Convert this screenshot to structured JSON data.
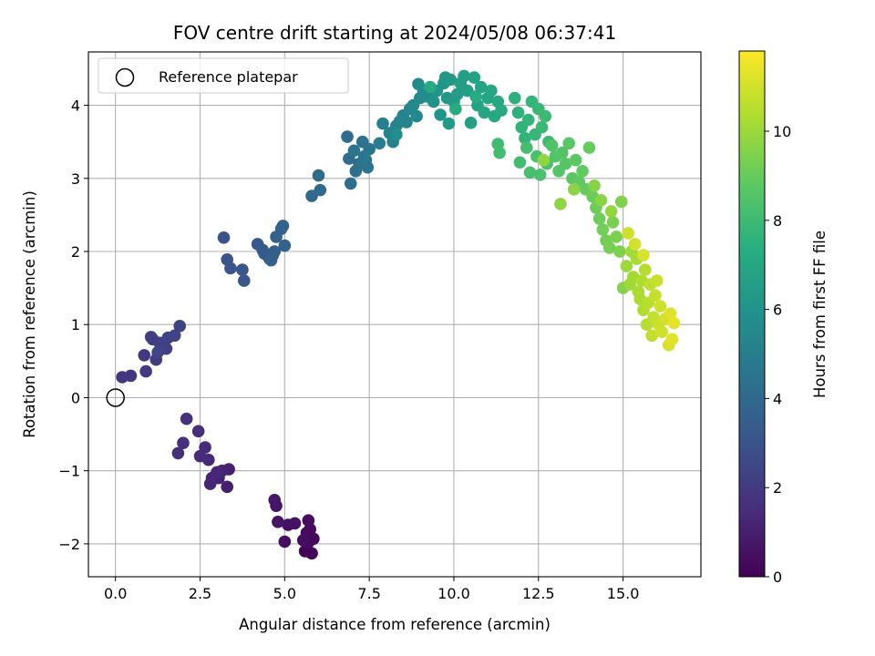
{
  "chart_data": {
    "type": "scatter",
    "title": "FOV centre drift starting at 2024/05/08 06:37:41",
    "xlabel": "Angular distance from reference (arcmin)",
    "ylabel": "Rotation from reference (arcmin)",
    "xlim": [
      -0.8,
      17.3
    ],
    "ylim": [
      -2.45,
      4.73
    ],
    "xticks": [
      0,
      2.5,
      5,
      7.5,
      10,
      12.5,
      15
    ],
    "xtick_labels": [
      "0.0",
      "2.5",
      "5.0",
      "7.5",
      "10.0",
      "12.5",
      "15.0"
    ],
    "yticks": [
      -2,
      -1,
      0,
      1,
      2,
      3,
      4
    ],
    "ytick_labels": [
      "−2",
      "−1",
      "0",
      "1",
      "2",
      "3",
      "4"
    ],
    "grid": true,
    "legend": {
      "placement": "top-left",
      "entries": [
        "Reference platepar"
      ]
    },
    "reference_point": {
      "x": 0,
      "y": 0,
      "label": "Reference platepar"
    },
    "colorbar": {
      "label": "Hours from first FF file",
      "range": [
        0,
        11.8
      ],
      "ticks": [
        0,
        2,
        4,
        6,
        8,
        10
      ],
      "tick_labels": [
        "0",
        "2",
        "4",
        "6",
        "8",
        "10"
      ],
      "colormap": "viridis"
    },
    "points": [
      {
        "x": 5.8,
        "y": -2.13,
        "h": 0.1
      },
      {
        "x": 5.6,
        "y": -2.1,
        "h": 0.15
      },
      {
        "x": 5.85,
        "y": -1.93,
        "h": 0.2
      },
      {
        "x": 5.7,
        "y": -1.98,
        "h": 0.25
      },
      {
        "x": 5.65,
        "y": -1.85,
        "h": 0.3
      },
      {
        "x": 5.75,
        "y": -1.8,
        "h": 0.35
      },
      {
        "x": 5.7,
        "y": -1.68,
        "h": 0.4
      },
      {
        "x": 5.55,
        "y": -1.95,
        "h": 0.45
      },
      {
        "x": 5.0,
        "y": -1.97,
        "h": 0.5
      },
      {
        "x": 5.1,
        "y": -1.74,
        "h": 0.55
      },
      {
        "x": 5.3,
        "y": -1.72,
        "h": 0.6
      },
      {
        "x": 4.8,
        "y": -1.7,
        "h": 0.65
      },
      {
        "x": 4.75,
        "y": -1.48,
        "h": 0.7
      },
      {
        "x": 4.7,
        "y": -1.4,
        "h": 0.75
      },
      {
        "x": 3.3,
        "y": -1.22,
        "h": 1.0
      },
      {
        "x": 3.35,
        "y": -0.98,
        "h": 1.05
      },
      {
        "x": 3.15,
        "y": -1.0,
        "h": 1.1
      },
      {
        "x": 3.05,
        "y": -1.1,
        "h": 1.15
      },
      {
        "x": 2.85,
        "y": -1.1,
        "h": 1.2
      },
      {
        "x": 2.8,
        "y": -1.18,
        "h": 1.25
      },
      {
        "x": 3.0,
        "y": -1.02,
        "h": 1.3
      },
      {
        "x": 2.75,
        "y": -0.85,
        "h": 1.35
      },
      {
        "x": 2.65,
        "y": -0.68,
        "h": 1.4
      },
      {
        "x": 2.5,
        "y": -0.8,
        "h": 1.45
      },
      {
        "x": 2.45,
        "y": -0.46,
        "h": 1.5
      },
      {
        "x": 2.0,
        "y": -0.62,
        "h": 1.55
      },
      {
        "x": 1.85,
        "y": -0.76,
        "h": 1.6
      },
      {
        "x": 2.1,
        "y": -0.29,
        "h": 1.65
      },
      {
        "x": 0.2,
        "y": 0.28,
        "h": 1.8
      },
      {
        "x": 0.45,
        "y": 0.3,
        "h": 1.85
      },
      {
        "x": 0.9,
        "y": 0.36,
        "h": 1.9
      },
      {
        "x": 0.85,
        "y": 0.58,
        "h": 1.95
      },
      {
        "x": 1.2,
        "y": 0.52,
        "h": 2.0
      },
      {
        "x": 1.1,
        "y": 0.8,
        "h": 2.05
      },
      {
        "x": 1.05,
        "y": 0.83,
        "h": 2.1
      },
      {
        "x": 1.3,
        "y": 0.75,
        "h": 2.15
      },
      {
        "x": 1.5,
        "y": 0.67,
        "h": 2.2
      },
      {
        "x": 1.4,
        "y": 0.72,
        "h": 2.25
      },
      {
        "x": 1.55,
        "y": 0.82,
        "h": 2.3
      },
      {
        "x": 1.75,
        "y": 0.85,
        "h": 2.35
      },
      {
        "x": 1.9,
        "y": 0.98,
        "h": 2.4
      },
      {
        "x": 1.25,
        "y": 0.62,
        "h": 2.45
      },
      {
        "x": 3.2,
        "y": 2.19,
        "h": 3.0
      },
      {
        "x": 3.3,
        "y": 1.89,
        "h": 3.05
      },
      {
        "x": 3.4,
        "y": 1.77,
        "h": 3.1
      },
      {
        "x": 3.75,
        "y": 1.75,
        "h": 3.15
      },
      {
        "x": 3.8,
        "y": 1.6,
        "h": 3.2
      },
      {
        "x": 4.2,
        "y": 2.1,
        "h": 3.25
      },
      {
        "x": 4.35,
        "y": 2.02,
        "h": 3.3
      },
      {
        "x": 4.4,
        "y": 1.97,
        "h": 3.35
      },
      {
        "x": 4.55,
        "y": 1.9,
        "h": 3.4
      },
      {
        "x": 4.65,
        "y": 1.95,
        "h": 3.45
      },
      {
        "x": 4.7,
        "y": 2.0,
        "h": 3.5
      },
      {
        "x": 4.6,
        "y": 1.88,
        "h": 3.55
      },
      {
        "x": 4.75,
        "y": 2.2,
        "h": 3.6
      },
      {
        "x": 4.9,
        "y": 2.31,
        "h": 3.65
      },
      {
        "x": 5.0,
        "y": 2.08,
        "h": 3.7
      },
      {
        "x": 4.95,
        "y": 2.35,
        "h": 3.75
      },
      {
        "x": 5.8,
        "y": 2.76,
        "h": 4.0
      },
      {
        "x": 6.05,
        "y": 2.84,
        "h": 4.05
      },
      {
        "x": 6.0,
        "y": 3.04,
        "h": 4.1
      },
      {
        "x": 6.85,
        "y": 3.57,
        "h": 4.15
      },
      {
        "x": 6.9,
        "y": 3.27,
        "h": 4.2
      },
      {
        "x": 6.95,
        "y": 2.93,
        "h": 4.25
      },
      {
        "x": 7.1,
        "y": 3.1,
        "h": 4.3
      },
      {
        "x": 7.2,
        "y": 3.2,
        "h": 4.35
      },
      {
        "x": 7.3,
        "y": 3.5,
        "h": 4.4
      },
      {
        "x": 7.4,
        "y": 3.25,
        "h": 4.45
      },
      {
        "x": 7.5,
        "y": 3.4,
        "h": 4.5
      },
      {
        "x": 7.45,
        "y": 3.15,
        "h": 4.55
      },
      {
        "x": 7.05,
        "y": 3.38,
        "h": 4.6
      },
      {
        "x": 7.35,
        "y": 3.3,
        "h": 4.65
      },
      {
        "x": 7.8,
        "y": 3.48,
        "h": 5.0
      },
      {
        "x": 7.9,
        "y": 3.75,
        "h": 5.05
      },
      {
        "x": 8.1,
        "y": 3.62,
        "h": 5.1
      },
      {
        "x": 8.2,
        "y": 3.5,
        "h": 5.15
      },
      {
        "x": 8.3,
        "y": 3.72,
        "h": 5.2
      },
      {
        "x": 8.4,
        "y": 3.78,
        "h": 5.25
      },
      {
        "x": 8.5,
        "y": 3.86,
        "h": 5.3
      },
      {
        "x": 8.6,
        "y": 3.77,
        "h": 5.35
      },
      {
        "x": 8.7,
        "y": 3.95,
        "h": 5.4
      },
      {
        "x": 8.8,
        "y": 4.0,
        "h": 5.45
      },
      {
        "x": 8.9,
        "y": 3.85,
        "h": 5.5
      },
      {
        "x": 9.0,
        "y": 4.1,
        "h": 5.55
      },
      {
        "x": 8.95,
        "y": 4.29,
        "h": 5.6
      },
      {
        "x": 9.1,
        "y": 4.2,
        "h": 5.65
      },
      {
        "x": 9.2,
        "y": 4.12,
        "h": 5.7
      },
      {
        "x": 8.3,
        "y": 3.6,
        "h": 5.75
      },
      {
        "x": 9.4,
        "y": 4.05,
        "h": 6.0
      },
      {
        "x": 9.5,
        "y": 4.2,
        "h": 6.05
      },
      {
        "x": 9.6,
        "y": 3.87,
        "h": 6.1
      },
      {
        "x": 9.7,
        "y": 4.3,
        "h": 6.15
      },
      {
        "x": 9.75,
        "y": 4.38,
        "h": 6.2
      },
      {
        "x": 9.8,
        "y": 4.1,
        "h": 6.25
      },
      {
        "x": 9.85,
        "y": 3.75,
        "h": 6.3
      },
      {
        "x": 9.9,
        "y": 4.35,
        "h": 6.35
      },
      {
        "x": 10.0,
        "y": 4.05,
        "h": 6.4
      },
      {
        "x": 10.1,
        "y": 4.15,
        "h": 6.45
      },
      {
        "x": 10.2,
        "y": 4.3,
        "h": 6.5
      },
      {
        "x": 10.3,
        "y": 4.4,
        "h": 6.55
      },
      {
        "x": 10.4,
        "y": 4.2,
        "h": 6.6
      },
      {
        "x": 10.5,
        "y": 3.76,
        "h": 6.65
      },
      {
        "x": 10.6,
        "y": 4.38,
        "h": 6.7
      },
      {
        "x": 10.7,
        "y": 4.0,
        "h": 6.75
      },
      {
        "x": 10.8,
        "y": 4.25,
        "h": 6.8
      },
      {
        "x": 10.9,
        "y": 3.9,
        "h": 6.85
      },
      {
        "x": 11.0,
        "y": 4.1,
        "h": 6.9
      },
      {
        "x": 11.1,
        "y": 4.2,
        "h": 6.95
      },
      {
        "x": 11.2,
        "y": 3.85,
        "h": 7.0
      },
      {
        "x": 11.3,
        "y": 4.05,
        "h": 7.05
      },
      {
        "x": 11.4,
        "y": 3.93,
        "h": 7.1
      },
      {
        "x": 9.3,
        "y": 4.25,
        "h": 7.15
      },
      {
        "x": 10.05,
        "y": 3.95,
        "h": 7.2
      },
      {
        "x": 10.65,
        "y": 4.12,
        "h": 7.25
      },
      {
        "x": 11.8,
        "y": 4.1,
        "h": 7.5
      },
      {
        "x": 11.9,
        "y": 3.9,
        "h": 7.55
      },
      {
        "x": 12.0,
        "y": 3.7,
        "h": 7.6
      },
      {
        "x": 12.1,
        "y": 3.55,
        "h": 7.65
      },
      {
        "x": 12.2,
        "y": 3.8,
        "h": 7.7
      },
      {
        "x": 12.3,
        "y": 4.05,
        "h": 7.75
      },
      {
        "x": 12.4,
        "y": 3.6,
        "h": 7.8
      },
      {
        "x": 12.5,
        "y": 3.95,
        "h": 7.85
      },
      {
        "x": 12.6,
        "y": 3.7,
        "h": 7.9
      },
      {
        "x": 12.7,
        "y": 3.85,
        "h": 7.95
      },
      {
        "x": 12.8,
        "y": 3.5,
        "h": 8.0
      },
      {
        "x": 11.3,
        "y": 3.47,
        "h": 8.05
      },
      {
        "x": 11.35,
        "y": 3.35,
        "h": 8.1
      },
      {
        "x": 11.95,
        "y": 3.22,
        "h": 8.15
      },
      {
        "x": 12.15,
        "y": 3.42,
        "h": 8.2
      },
      {
        "x": 12.25,
        "y": 3.08,
        "h": 8.25
      },
      {
        "x": 12.45,
        "y": 3.3,
        "h": 8.3
      },
      {
        "x": 12.55,
        "y": 3.05,
        "h": 8.35
      },
      {
        "x": 12.75,
        "y": 3.2,
        "h": 8.4
      },
      {
        "x": 12.9,
        "y": 3.45,
        "h": 8.45
      },
      {
        "x": 13.0,
        "y": 3.3,
        "h": 8.5
      },
      {
        "x": 13.1,
        "y": 3.1,
        "h": 8.55
      },
      {
        "x": 13.2,
        "y": 3.35,
        "h": 8.6
      },
      {
        "x": 13.3,
        "y": 3.2,
        "h": 8.65
      },
      {
        "x": 13.4,
        "y": 3.48,
        "h": 8.7
      },
      {
        "x": 13.5,
        "y": 3.0,
        "h": 8.75
      },
      {
        "x": 13.6,
        "y": 3.25,
        "h": 8.8
      },
      {
        "x": 13.7,
        "y": 2.95,
        "h": 8.85
      },
      {
        "x": 13.8,
        "y": 3.1,
        "h": 8.9
      },
      {
        "x": 13.9,
        "y": 2.85,
        "h": 8.95
      },
      {
        "x": 14.0,
        "y": 3.42,
        "h": 9.0
      },
      {
        "x": 14.1,
        "y": 2.75,
        "h": 9.05
      },
      {
        "x": 14.2,
        "y": 2.6,
        "h": 9.1
      },
      {
        "x": 14.3,
        "y": 2.45,
        "h": 9.15
      },
      {
        "x": 14.4,
        "y": 2.3,
        "h": 9.2
      },
      {
        "x": 14.5,
        "y": 2.15,
        "h": 9.25
      },
      {
        "x": 14.6,
        "y": 2.05,
        "h": 9.3
      },
      {
        "x": 14.7,
        "y": 2.4,
        "h": 9.35
      },
      {
        "x": 14.8,
        "y": 2.2,
        "h": 9.4
      },
      {
        "x": 14.9,
        "y": 2.0,
        "h": 9.45
      },
      {
        "x": 14.95,
        "y": 2.68,
        "h": 9.5
      },
      {
        "x": 15.0,
        "y": 1.5,
        "h": 9.55
      },
      {
        "x": 14.15,
        "y": 2.9,
        "h": 9.6
      },
      {
        "x": 14.35,
        "y": 2.7,
        "h": 9.65
      },
      {
        "x": 13.55,
        "y": 2.85,
        "h": 9.7
      },
      {
        "x": 13.15,
        "y": 2.65,
        "h": 9.75
      },
      {
        "x": 12.65,
        "y": 3.25,
        "h": 9.8
      },
      {
        "x": 14.65,
        "y": 2.55,
        "h": 9.85
      },
      {
        "x": 15.1,
        "y": 1.8,
        "h": 10.0
      },
      {
        "x": 15.2,
        "y": 1.55,
        "h": 10.05
      },
      {
        "x": 15.25,
        "y": 2.0,
        "h": 10.1
      },
      {
        "x": 15.3,
        "y": 1.65,
        "h": 10.15
      },
      {
        "x": 15.4,
        "y": 1.9,
        "h": 10.2
      },
      {
        "x": 15.45,
        "y": 1.45,
        "h": 10.25
      },
      {
        "x": 15.5,
        "y": 1.35,
        "h": 10.3
      },
      {
        "x": 15.55,
        "y": 1.6,
        "h": 10.35
      },
      {
        "x": 15.6,
        "y": 1.2,
        "h": 10.4
      },
      {
        "x": 15.65,
        "y": 1.75,
        "h": 10.45
      },
      {
        "x": 15.7,
        "y": 1.0,
        "h": 10.5
      },
      {
        "x": 15.75,
        "y": 1.3,
        "h": 10.55
      },
      {
        "x": 15.8,
        "y": 1.55,
        "h": 10.6
      },
      {
        "x": 15.85,
        "y": 0.85,
        "h": 10.65
      },
      {
        "x": 15.9,
        "y": 1.1,
        "h": 10.7
      },
      {
        "x": 15.95,
        "y": 1.4,
        "h": 10.75
      },
      {
        "x": 16.0,
        "y": 1.6,
        "h": 10.8
      },
      {
        "x": 16.05,
        "y": 1.0,
        "h": 10.85
      },
      {
        "x": 16.1,
        "y": 1.25,
        "h": 10.9
      },
      {
        "x": 16.15,
        "y": 0.9,
        "h": 10.95
      },
      {
        "x": 16.25,
        "y": 1.08,
        "h": 11.0
      },
      {
        "x": 16.35,
        "y": 0.72,
        "h": 11.1
      },
      {
        "x": 16.4,
        "y": 1.15,
        "h": 11.2
      },
      {
        "x": 16.45,
        "y": 0.8,
        "h": 11.3
      },
      {
        "x": 16.5,
        "y": 1.02,
        "h": 11.4
      },
      {
        "x": 15.35,
        "y": 2.1,
        "h": 11.0
      },
      {
        "x": 15.6,
        "y": 1.95,
        "h": 11.1
      },
      {
        "x": 15.15,
        "y": 2.25,
        "h": 10.9
      }
    ]
  }
}
